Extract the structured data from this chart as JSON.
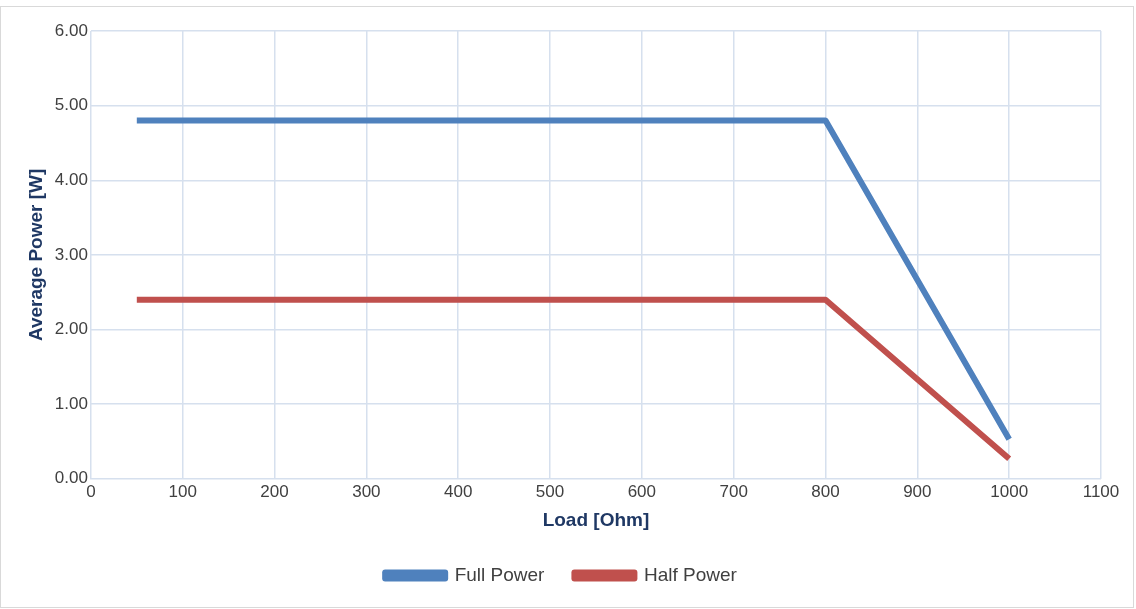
{
  "chart_data": {
    "type": "line",
    "xlabel": "Load [Ohm]",
    "ylabel": "Average Power [W]",
    "series": [
      {
        "name": "Full Power",
        "color": "#4f81bd",
        "x": [
          50,
          800,
          1000
        ],
        "values": [
          4.8,
          4.8,
          0.53
        ]
      },
      {
        "name": "Half Power",
        "color": "#c0504d",
        "x": [
          50,
          800,
          1000
        ],
        "values": [
          2.4,
          2.4,
          0.27
        ]
      }
    ],
    "xlim": [
      0,
      1100
    ],
    "xticks": [
      0,
      100,
      200,
      300,
      400,
      500,
      600,
      700,
      800,
      900,
      1000,
      1100
    ],
    "ylim": [
      0,
      6
    ],
    "yticks": [
      {
        "value": 0,
        "label": "0.00"
      },
      {
        "value": 1,
        "label": "1.00"
      },
      {
        "value": 2,
        "label": "2.00"
      },
      {
        "value": 3,
        "label": "3.00"
      },
      {
        "value": 4,
        "label": "4.00"
      },
      {
        "value": 5,
        "label": "5.00"
      },
      {
        "value": 6,
        "label": "6.00"
      }
    ],
    "grid": true,
    "legend": "bottom",
    "marker": "none",
    "line_style": "solid"
  }
}
